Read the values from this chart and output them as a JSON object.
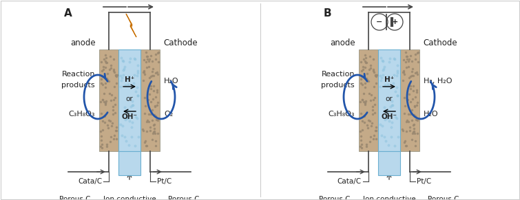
{
  "bg_color": "#f8f8f8",
  "white": "#ffffff",
  "sand_color": "#c4aa88",
  "membrane_color": "#b8d8ec",
  "membrane_stroke": "#6aafd0",
  "arrow_color": "#2255aa",
  "text_color": "#222222",
  "line_color": "#444444",
  "lightning_color": "#f5a800",
  "lightning_edge": "#c87000",
  "panel_A": {
    "label": "A",
    "has_lightning": true,
    "has_battery": false,
    "right_label1": "H₂O",
    "right_label2": "O₂",
    "left_label1": "Reaction\nproducts",
    "left_label2": "C₃H₈O₃"
  },
  "panel_B": {
    "label": "B",
    "has_lightning": false,
    "has_battery": true,
    "right_label1": "H₂, H₂O",
    "right_label2": "H₂O",
    "left_label1": "Reaction\nproducts",
    "left_label2": "C₃H₈O₃"
  }
}
